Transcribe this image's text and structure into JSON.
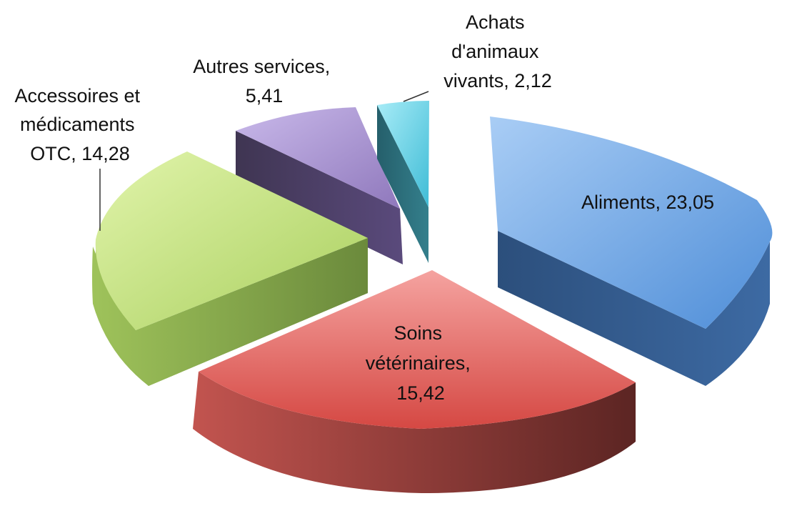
{
  "chart_data": {
    "type": "pie",
    "style": "3d-exploded",
    "title": "",
    "slices": [
      {
        "label": "Aliments",
        "value": 23.05,
        "value_text": "23,05",
        "color": "#5c94d8"
      },
      {
        "label": "Soins vétérinaires",
        "value": 15.42,
        "value_text": "15,42",
        "color": "#d04a48"
      },
      {
        "label": "Accessoires et médicaments OTC",
        "value": 14.28,
        "value_text": "14,28",
        "color": "#a6c85a"
      },
      {
        "label": "Autres services",
        "value": 5.41,
        "value_text": "5,41",
        "color": "#8c78b4"
      },
      {
        "label": "Achats d'animaux vivants",
        "value": 2.12,
        "value_text": "2,12",
        "color": "#4cc0d6"
      }
    ],
    "data_labels": {
      "aliments": [
        "Aliments, 23,05"
      ],
      "soins": [
        "Soins",
        "vétérinaires,",
        "15,42"
      ],
      "accessoires": [
        "Accessoires et",
        "médicaments",
        "OTC, 14,28"
      ],
      "autres": [
        "Autres services,",
        "5,41"
      ],
      "achats": [
        "Achats",
        "d'animaux",
        "vivants, 2,12"
      ]
    }
  }
}
